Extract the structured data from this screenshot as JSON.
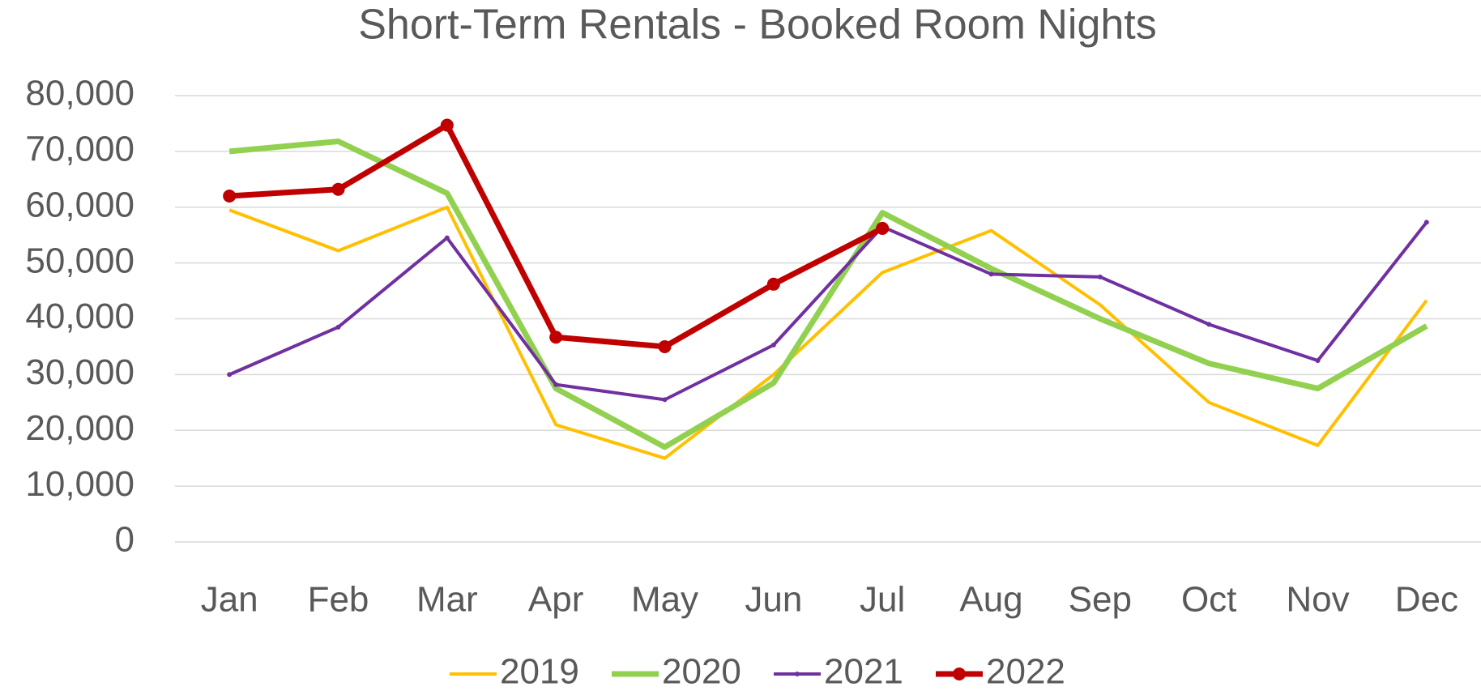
{
  "chart_data": {
    "type": "line",
    "title": "Short-Term Rentals - Booked Room Nights",
    "categories": [
      "Jan",
      "Feb",
      "Mar",
      "Apr",
      "May",
      "Jun",
      "Jul",
      "Aug",
      "Sep",
      "Oct",
      "Nov",
      "Dec"
    ],
    "series": [
      {
        "name": "2019",
        "color": "#ffc000",
        "values": [
          59500,
          52200,
          60000,
          21000,
          15000,
          30000,
          48300,
          55800,
          42500,
          25000,
          17300,
          43300
        ]
      },
      {
        "name": "2020",
        "color": "#92d050",
        "values": [
          70000,
          71800,
          62500,
          27500,
          17000,
          28500,
          59000,
          49000,
          40000,
          32000,
          27500,
          38700
        ]
      },
      {
        "name": "2021",
        "color": "#7030a0",
        "values": [
          30000,
          38500,
          54500,
          28200,
          25500,
          35300,
          56500,
          48000,
          47500,
          39000,
          32500,
          57300
        ]
      },
      {
        "name": "2022",
        "color": "#c00000",
        "values": [
          62000,
          63200,
          74700,
          36700,
          35000,
          46200,
          56200,
          null,
          null,
          null,
          null,
          null
        ]
      }
    ],
    "ylim": [
      0,
      80000
    ],
    "yticks": [
      0,
      {
        "value": 10000,
        "label": "10,000"
      },
      {
        "value": 20000,
        "label": "20,000"
      },
      {
        "value": 30000,
        "label": "30,000"
      },
      {
        "value": 40000,
        "label": "40,000"
      },
      {
        "value": 50000,
        "label": "50,000"
      },
      {
        "value": 60000,
        "label": "60,000"
      },
      {
        "value": 70000,
        "label": "70,000"
      },
      {
        "value": 80000,
        "label": "80,000"
      }
    ],
    "grid": true,
    "legend": "bottom"
  }
}
